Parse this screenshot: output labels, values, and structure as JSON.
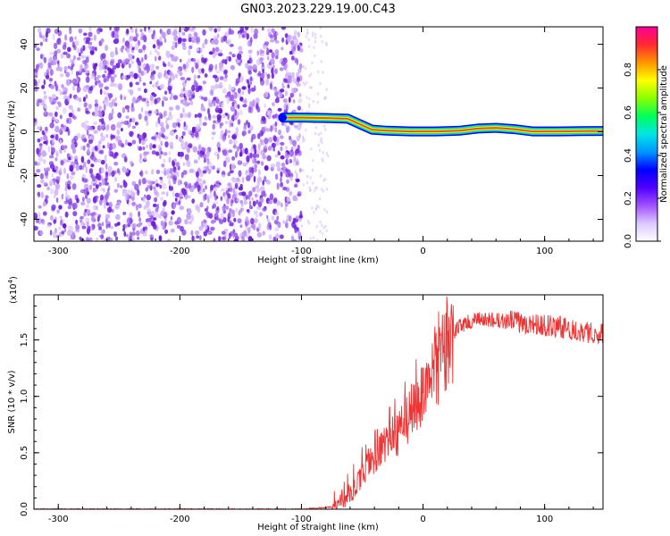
{
  "title": "GN03.2023.229.19.00.C43",
  "colors": {
    "signal_line": "#ee3333",
    "noise_scatter": "#8833ee",
    "track": [
      "#0000ff",
      "#00c8ff",
      "#00ee66",
      "#f0ff00",
      "#ff3333"
    ]
  },
  "chart_data": [
    {
      "type": "heatmap",
      "title": "",
      "xlabel": "Height of straight line (km)",
      "ylabel": "Frequency (Hz)",
      "xlim": [
        -320,
        148
      ],
      "ylim": [
        -50,
        48
      ],
      "xticks": [
        -300,
        -200,
        -100,
        0,
        100
      ],
      "yticks": [
        -40,
        -20,
        0,
        20,
        40
      ],
      "colorbar": {
        "label": "Normalized spectral amplitude",
        "range": [
          0,
          1
        ],
        "ticks": [
          "0.0",
          "0.2",
          "0.4",
          "0.6",
          "0.8"
        ],
        "colormap": [
          "#ffffff",
          "#dcc8ff",
          "#a050ff",
          "#5000ff",
          "#0000ff",
          "#0096ff",
          "#00e6e6",
          "#00ff5a",
          "#8cff00",
          "#ffff00",
          "#ff9600",
          "#ff2832",
          "#ff0096"
        ]
      },
      "noise_region_x": [
        -320,
        -100
      ],
      "signal_track": [
        {
          "x": -115,
          "y": 6.5
        },
        {
          "x": -100,
          "y": 6.5
        },
        {
          "x": -80,
          "y": 6.3
        },
        {
          "x": -62,
          "y": 6.0
        },
        {
          "x": -52,
          "y": 3.5
        },
        {
          "x": -42,
          "y": 1.0
        },
        {
          "x": -30,
          "y": 0.5
        },
        {
          "x": -10,
          "y": 0.2
        },
        {
          "x": 10,
          "y": 0.2
        },
        {
          "x": 30,
          "y": 0.5
        },
        {
          "x": 45,
          "y": 1.5
        },
        {
          "x": 60,
          "y": 1.8
        },
        {
          "x": 75,
          "y": 1.2
        },
        {
          "x": 90,
          "y": 0.2
        },
        {
          "x": 110,
          "y": 0.2
        },
        {
          "x": 130,
          "y": 0.3
        },
        {
          "x": 148,
          "y": 0.4
        }
      ]
    },
    {
      "type": "line",
      "title": "",
      "xlabel": "Height of straight line (km)",
      "ylabel": "SNR (10 * v/v)",
      "y_multiplier": "(x10",
      "y_multiplier_exp": "4",
      "y_multiplier_close": ")",
      "xlim": [
        -320,
        148
      ],
      "ylim": [
        0,
        1.9
      ],
      "xticks": [
        -300,
        -200,
        -100,
        0,
        100
      ],
      "yticks": [
        "0.0",
        "0.5",
        "1.0",
        "1.5"
      ],
      "trend": [
        {
          "x": -320,
          "y": 0.0
        },
        {
          "x": -100,
          "y": 0.0
        },
        {
          "x": -75,
          "y": 0.02
        },
        {
          "x": -65,
          "y": 0.05
        },
        {
          "x": -55,
          "y": 0.2
        },
        {
          "x": -45,
          "y": 0.4
        },
        {
          "x": -30,
          "y": 0.55
        },
        {
          "x": -15,
          "y": 0.75
        },
        {
          "x": 0,
          "y": 1.0
        },
        {
          "x": 10,
          "y": 1.2
        },
        {
          "x": 20,
          "y": 1.45
        },
        {
          "x": 30,
          "y": 1.63
        },
        {
          "x": 45,
          "y": 1.68
        },
        {
          "x": 80,
          "y": 1.66
        },
        {
          "x": 120,
          "y": 1.6
        },
        {
          "x": 148,
          "y": 1.55
        }
      ]
    }
  ]
}
